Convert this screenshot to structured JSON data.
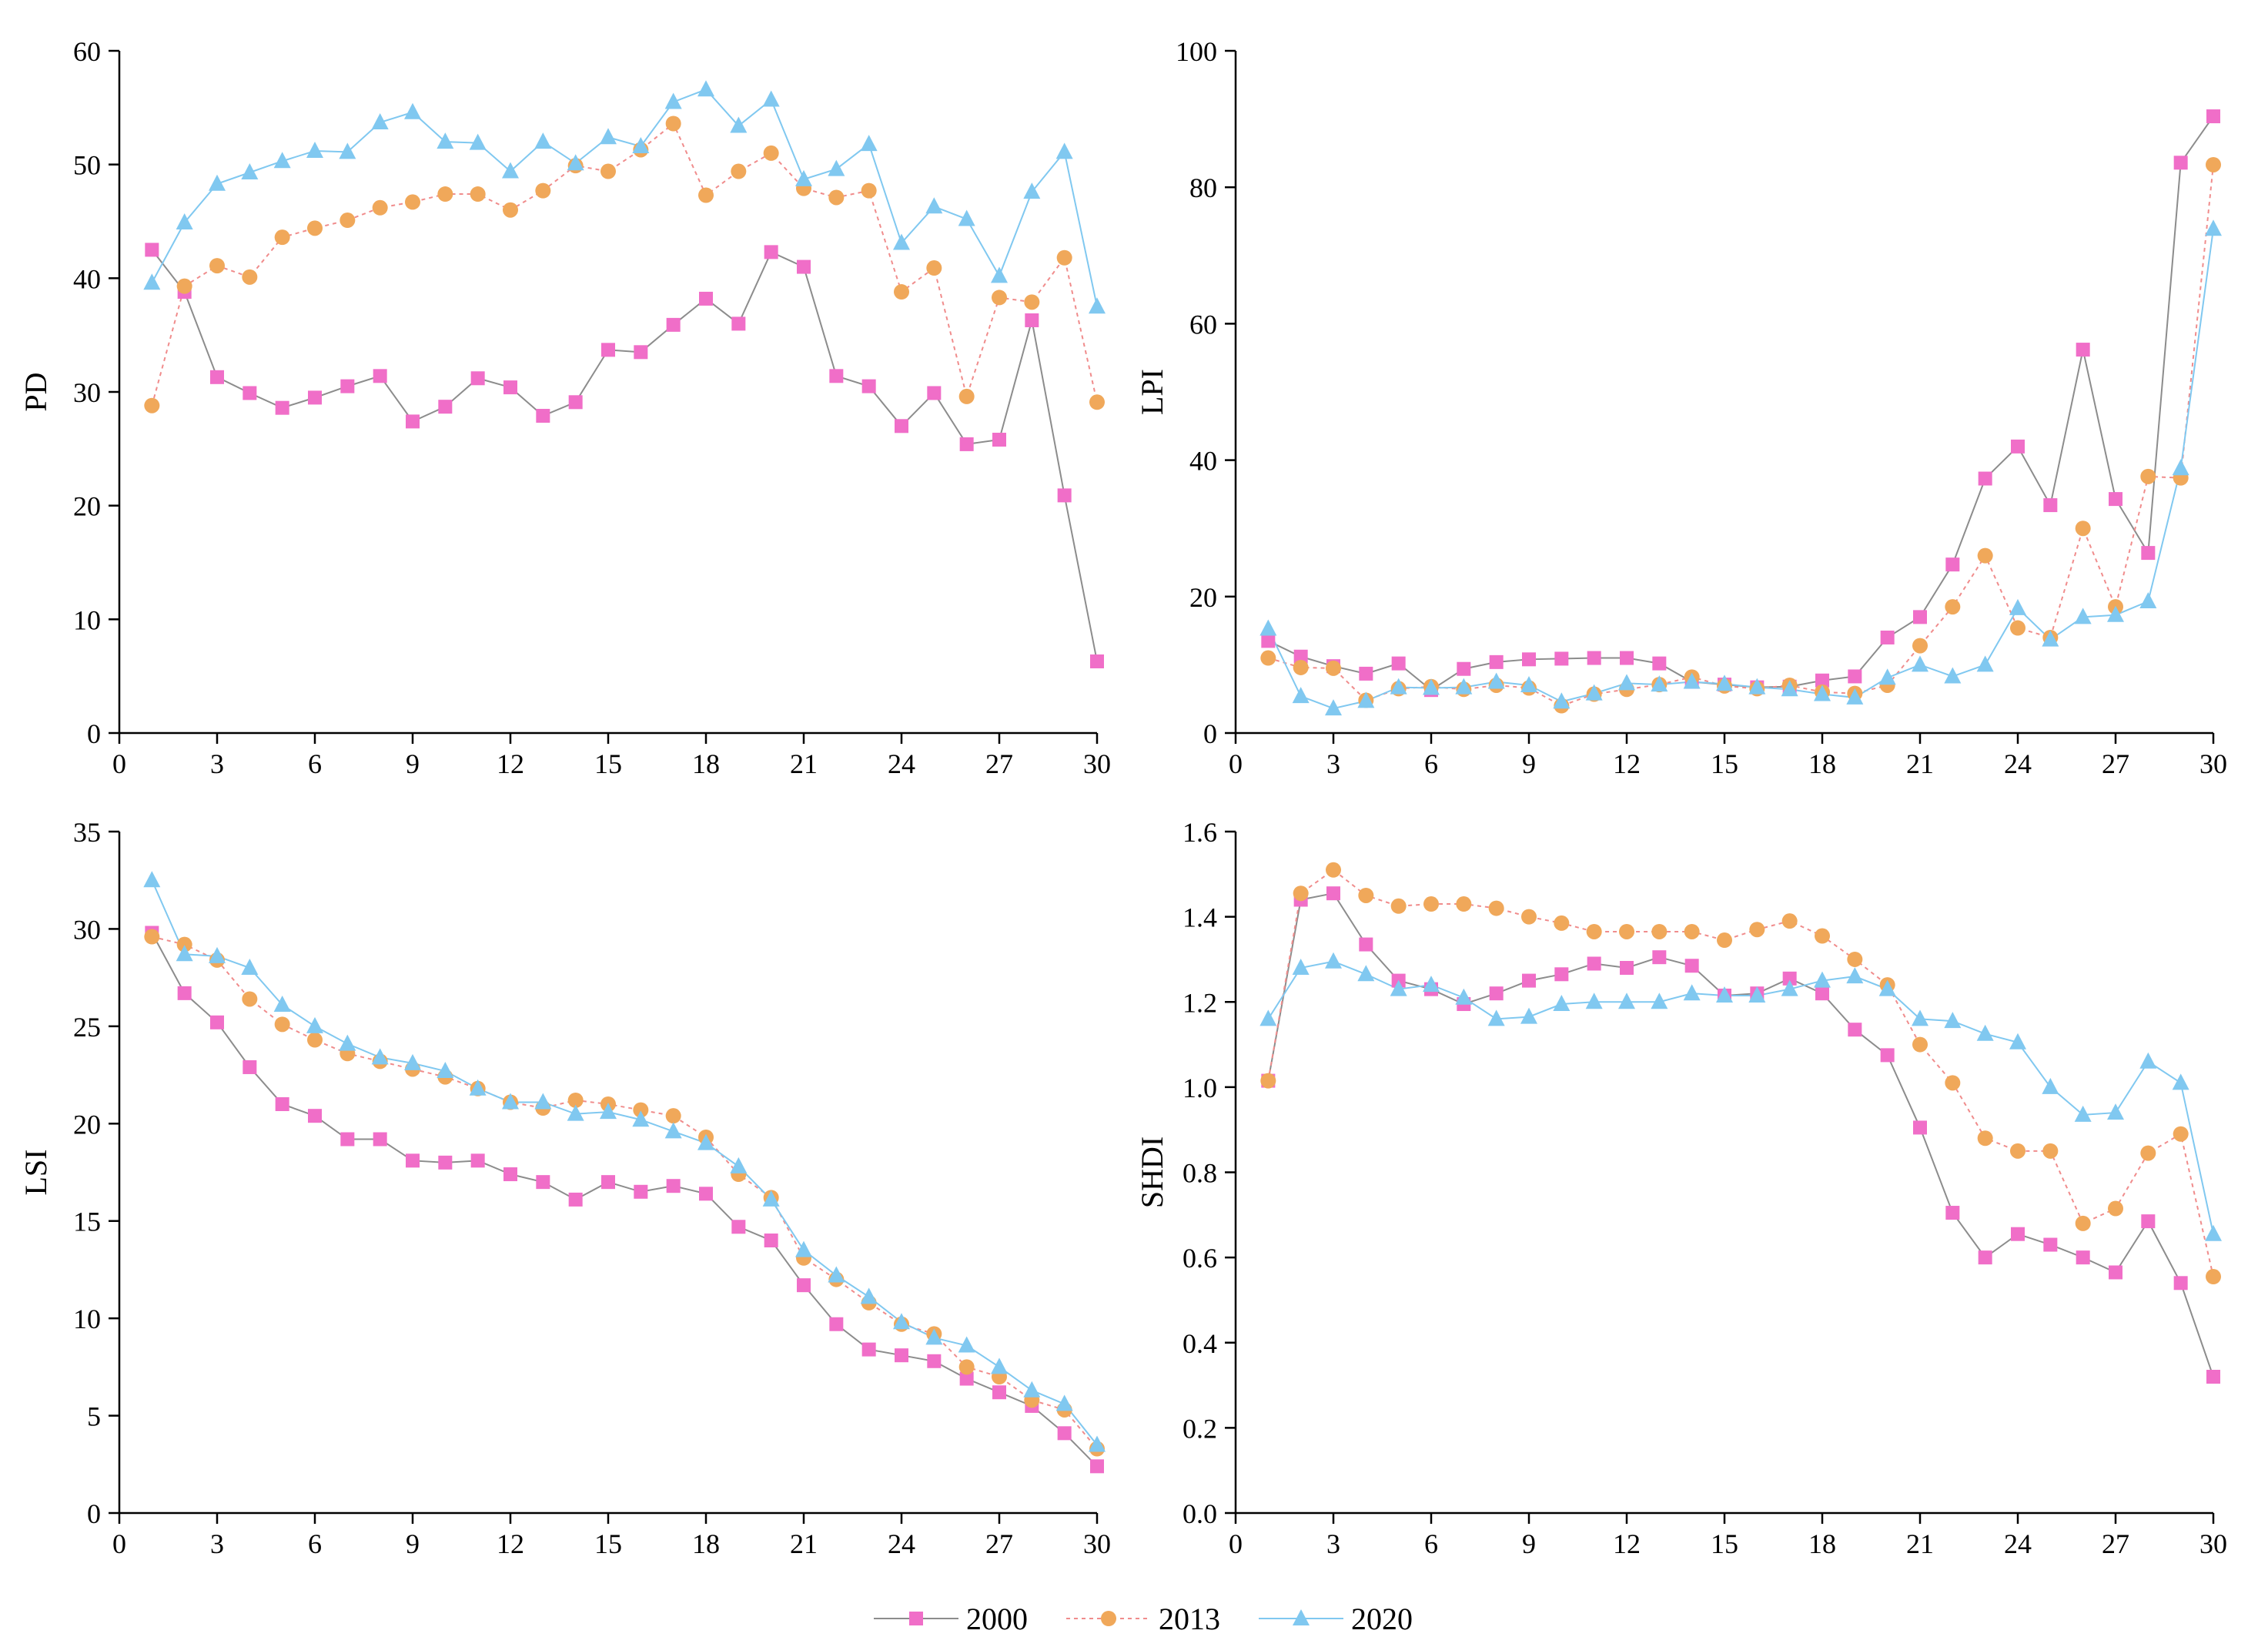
{
  "legend": {
    "entries": [
      {
        "name": "2000",
        "color": "#f06ec8",
        "marker": "square",
        "dash": "solid",
        "line_color": "#8c8c8c"
      },
      {
        "name": "2013",
        "color": "#f0a85a",
        "marker": "circle",
        "dash": "dotted",
        "line_color": "#f08c8c"
      },
      {
        "name": "2020",
        "color": "#80c8f0",
        "marker": "triangle",
        "dash": "solid",
        "line_color": "#80c8f0"
      }
    ]
  },
  "chart_data": [
    {
      "type": "line",
      "title": "",
      "xlabel": "",
      "ylabel": "PD",
      "xlim": [
        0,
        30
      ],
      "ylim": [
        0,
        60
      ],
      "xticks": [
        0,
        3,
        6,
        9,
        12,
        15,
        18,
        21,
        24,
        27,
        30
      ],
      "yticks": [
        0,
        10,
        20,
        30,
        40,
        50,
        60
      ],
      "x": [
        1,
        2,
        3,
        4,
        5,
        6,
        7,
        8,
        9,
        10,
        11,
        12,
        13,
        14,
        15,
        16,
        17,
        18,
        19,
        20,
        21,
        22,
        23,
        24,
        25,
        26,
        27,
        28,
        29,
        30
      ],
      "series": [
        {
          "name": "2000",
          "values": [
            42.5,
            38.8,
            31.3,
            29.9,
            28.6,
            29.5,
            30.5,
            31.4,
            27.4,
            28.7,
            31.2,
            30.4,
            27.9,
            29.1,
            33.7,
            33.5,
            35.9,
            38.2,
            36.0,
            42.3,
            41.0,
            31.4,
            30.5,
            27.0,
            29.9,
            25.4,
            25.8,
            36.3,
            20.9,
            6.3
          ]
        },
        {
          "name": "2013",
          "values": [
            28.8,
            39.3,
            41.1,
            40.1,
            43.6,
            44.4,
            45.1,
            46.2,
            46.7,
            47.4,
            47.4,
            46.0,
            47.7,
            49.9,
            49.4,
            51.3,
            53.6,
            47.3,
            49.4,
            51.0,
            47.9,
            47.1,
            47.7,
            38.8,
            40.9,
            29.6,
            38.3,
            37.9,
            41.8,
            29.1
          ]
        },
        {
          "name": "2020",
          "values": [
            39.6,
            44.9,
            48.3,
            49.3,
            50.3,
            51.2,
            51.1,
            53.7,
            54.6,
            52.0,
            51.9,
            49.4,
            52.0,
            50.1,
            52.4,
            51.6,
            55.5,
            56.6,
            53.4,
            55.7,
            48.7,
            49.6,
            51.8,
            43.1,
            46.3,
            45.2,
            40.2,
            47.6,
            51.1,
            37.5
          ]
        }
      ]
    },
    {
      "type": "line",
      "title": "",
      "xlabel": "",
      "ylabel": "LPI",
      "xlim": [
        0,
        30
      ],
      "ylim": [
        0,
        100
      ],
      "xticks": [
        0,
        3,
        6,
        9,
        12,
        15,
        18,
        21,
        24,
        27,
        30
      ],
      "yticks": [
        0,
        20,
        40,
        60,
        80,
        100
      ],
      "x": [
        1,
        2,
        3,
        4,
        5,
        6,
        7,
        8,
        9,
        10,
        11,
        12,
        13,
        14,
        15,
        16,
        17,
        18,
        19,
        20,
        21,
        22,
        23,
        24,
        25,
        26,
        27,
        28,
        29,
        30
      ],
      "series": [
        {
          "name": "2000",
          "values": [
            13.5,
            11.2,
            9.8,
            8.7,
            10.2,
            6.3,
            9.4,
            10.4,
            10.8,
            10.9,
            11.0,
            11.0,
            10.2,
            7.5,
            7.1,
            6.7,
            6.8,
            7.7,
            8.3,
            14.0,
            17.0,
            24.7,
            37.3,
            42.0,
            33.4,
            56.2,
            34.3,
            26.4,
            83.6,
            90.4
          ]
        },
        {
          "name": "2013",
          "values": [
            11.0,
            9.6,
            9.5,
            4.8,
            6.5,
            6.8,
            6.4,
            7.0,
            6.6,
            4.0,
            5.7,
            6.4,
            7.1,
            8.2,
            6.9,
            6.5,
            7.0,
            6.0,
            5.8,
            7.0,
            12.8,
            18.5,
            26.0,
            15.4,
            14.0,
            30.0,
            18.5,
            37.6,
            37.4,
            83.3
          ]
        },
        {
          "name": "2020",
          "values": [
            15.3,
            5.4,
            3.6,
            4.7,
            6.7,
            6.6,
            6.7,
            7.5,
            7.0,
            4.6,
            5.8,
            7.3,
            7.1,
            7.5,
            7.2,
            6.7,
            6.4,
            5.7,
            5.2,
            8.1,
            10.0,
            8.3,
            10.0,
            18.3,
            13.7,
            17.0,
            17.3,
            19.3,
            38.8,
            73.9
          ]
        }
      ]
    },
    {
      "type": "line",
      "title": "",
      "xlabel": "",
      "ylabel": "LSI",
      "xlim": [
        0,
        30
      ],
      "ylim": [
        0,
        35
      ],
      "xticks": [
        0,
        3,
        6,
        9,
        12,
        15,
        18,
        21,
        24,
        27,
        30
      ],
      "yticks": [
        0,
        5,
        10,
        15,
        20,
        25,
        30,
        35
      ],
      "x": [
        1,
        2,
        3,
        4,
        5,
        6,
        7,
        8,
        9,
        10,
        11,
        12,
        13,
        14,
        15,
        16,
        17,
        18,
        19,
        20,
        21,
        22,
        23,
        24,
        25,
        26,
        27,
        28,
        29,
        30
      ],
      "series": [
        {
          "name": "2000",
          "values": [
            29.8,
            26.7,
            25.2,
            22.9,
            21.0,
            20.4,
            19.2,
            19.2,
            18.1,
            18.0,
            18.1,
            17.4,
            17.0,
            16.1,
            17.0,
            16.5,
            16.8,
            16.4,
            14.7,
            14.0,
            11.7,
            9.7,
            8.4,
            8.1,
            7.8,
            6.9,
            6.2,
            5.5,
            4.1,
            2.4
          ]
        },
        {
          "name": "2013",
          "values": [
            29.6,
            29.2,
            28.4,
            26.4,
            25.1,
            24.3,
            23.6,
            23.2,
            22.8,
            22.4,
            21.8,
            21.1,
            20.8,
            21.2,
            21.0,
            20.7,
            20.4,
            19.3,
            17.4,
            16.2,
            13.1,
            12.0,
            10.8,
            9.7,
            9.2,
            7.5,
            7.0,
            5.8,
            5.3,
            3.3
          ]
        },
        {
          "name": "2020",
          "values": [
            32.5,
            28.7,
            28.6,
            28.0,
            26.1,
            25.0,
            24.1,
            23.4,
            23.1,
            22.7,
            21.8,
            21.1,
            21.1,
            20.5,
            20.6,
            20.2,
            19.6,
            19.0,
            17.8,
            16.1,
            13.5,
            12.2,
            11.1,
            9.8,
            9.0,
            8.6,
            7.5,
            6.3,
            5.6,
            3.5
          ]
        }
      ]
    },
    {
      "type": "line",
      "title": "",
      "xlabel": "",
      "ylabel": "SHDI",
      "xlim": [
        0,
        30
      ],
      "ylim": [
        0,
        1.6
      ],
      "xticks": [
        0,
        3,
        6,
        9,
        12,
        15,
        18,
        21,
        24,
        27,
        30
      ],
      "yticks": [
        0.0,
        0.2,
        0.4,
        0.6,
        0.8,
        1.0,
        1.2,
        1.4,
        1.6
      ],
      "ytick_labels": [
        "0.0",
        "0.2",
        "0.4",
        "0.6",
        "0.8",
        "1.0",
        "1.2",
        "1.4",
        "1.6"
      ],
      "x": [
        1,
        2,
        3,
        4,
        5,
        6,
        7,
        8,
        9,
        10,
        11,
        12,
        13,
        14,
        15,
        16,
        17,
        18,
        19,
        20,
        21,
        22,
        23,
        24,
        25,
        26,
        27,
        28,
        29,
        30
      ],
      "series": [
        {
          "name": "2000",
          "values": [
            1.015,
            1.44,
            1.455,
            1.335,
            1.25,
            1.23,
            1.195,
            1.22,
            1.25,
            1.265,
            1.29,
            1.28,
            1.305,
            1.285,
            1.215,
            1.22,
            1.255,
            1.22,
            1.135,
            1.075,
            0.905,
            0.705,
            0.6,
            0.655,
            0.63,
            0.6,
            0.565,
            0.685,
            0.54,
            0.32
          ]
        },
        {
          "name": "2013",
          "values": [
            1.015,
            1.455,
            1.51,
            1.45,
            1.425,
            1.43,
            1.43,
            1.42,
            1.4,
            1.385,
            1.365,
            1.365,
            1.365,
            1.365,
            1.345,
            1.37,
            1.39,
            1.355,
            1.3,
            1.24,
            1.1,
            1.01,
            0.88,
            0.85,
            0.85,
            0.68,
            0.715,
            0.845,
            0.89,
            0.555
          ]
        },
        {
          "name": "2020",
          "values": [
            1.16,
            1.28,
            1.295,
            1.265,
            1.23,
            1.24,
            1.21,
            1.16,
            1.165,
            1.195,
            1.2,
            1.2,
            1.2,
            1.22,
            1.215,
            1.215,
            1.23,
            1.25,
            1.26,
            1.23,
            1.16,
            1.155,
            1.125,
            1.105,
            1.0,
            0.935,
            0.94,
            1.06,
            1.01,
            0.655
          ]
        }
      ]
    }
  ]
}
